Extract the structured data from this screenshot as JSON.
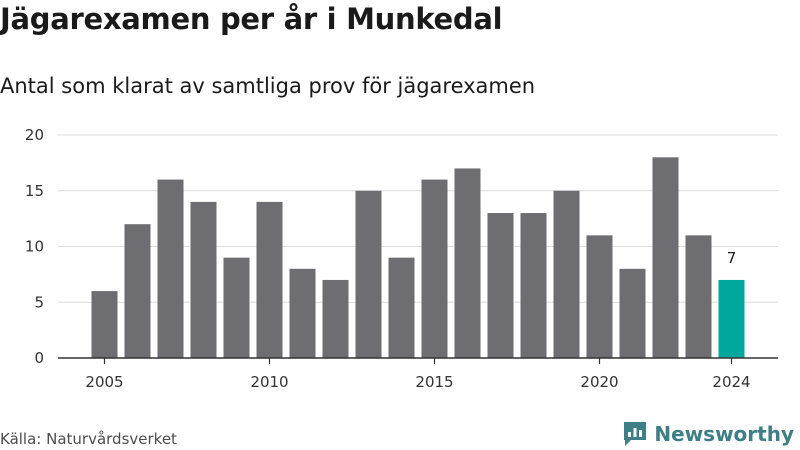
{
  "header": {
    "title": "Jägarexamen per år i Munkedal",
    "subtitle": "Antal som klarat av samtliga prov för jägarexamen"
  },
  "footer": {
    "source": "Källa: Naturvårdsverket",
    "brand": "Newsworthy"
  },
  "colors": {
    "bar": "#6e6d72",
    "highlight": "#00a79d",
    "grid": "#dcdcdc",
    "axis": "#333333",
    "brand": "#3d7f84"
  },
  "chart_data": {
    "type": "bar",
    "title": "Jägarexamen per år i Munkedal",
    "subtitle": "Antal som klarat av samtliga prov för jägarexamen",
    "xlabel": "",
    "ylabel": "",
    "categories": [
      2005,
      2006,
      2007,
      2008,
      2009,
      2010,
      2011,
      2012,
      2013,
      2014,
      2015,
      2016,
      2017,
      2018,
      2019,
      2020,
      2021,
      2022,
      2023,
      2024
    ],
    "values": [
      6,
      12,
      16,
      14,
      9,
      14,
      8,
      7,
      15,
      9,
      16,
      17,
      13,
      13,
      15,
      11,
      8,
      18,
      11,
      7
    ],
    "ylim": [
      0,
      20
    ],
    "yticks": [
      0,
      5,
      10,
      15,
      20
    ],
    "xticks": [
      2005,
      2010,
      2015,
      2020,
      2024
    ],
    "highlight_index": 19,
    "annotations": [
      {
        "category": 2024,
        "text": "7"
      }
    ],
    "grid": true
  }
}
